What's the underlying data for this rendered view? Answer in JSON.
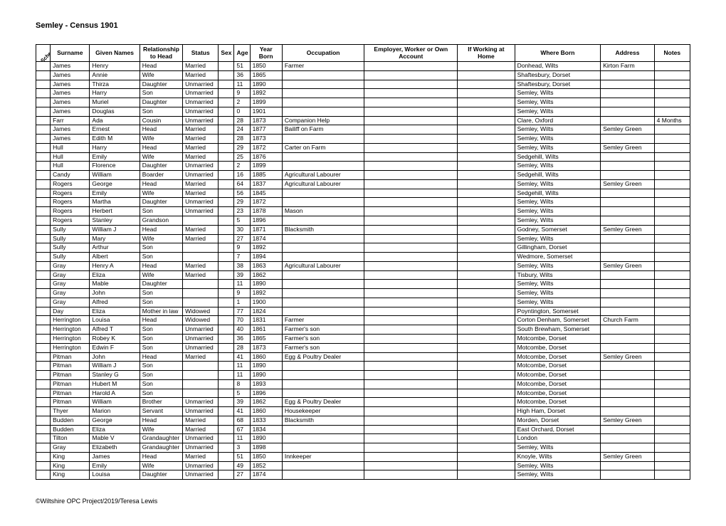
{
  "title": "Semley - Census 1901",
  "footer": "©Wiltshire OPC Project/2019/Teresa Lewis",
  "columns": [
    "Schedule",
    "Surname",
    "Given Names",
    "Relationship to Head",
    "Status",
    "Sex",
    "Age",
    "Year Born",
    "Occupation",
    "Employer, Worker or Own Account",
    "If Working at Home",
    "Where Born",
    "Address",
    "Notes"
  ],
  "rows": [
    [
      "",
      "James",
      "Henry",
      "Head",
      "Married",
      "",
      "51",
      "1850",
      "Farmer",
      "",
      "",
      "Donhead, Wilts",
      "Kirton Farm",
      ""
    ],
    [
      "",
      "James",
      "Annie",
      "Wife",
      "Married",
      "",
      "36",
      "1865",
      "",
      "",
      "",
      "Shaftesbury, Dorset",
      "",
      ""
    ],
    [
      "",
      "James",
      "Thirza",
      "Daughter",
      "Unmarried",
      "",
      "11",
      "1890",
      "",
      "",
      "",
      "Shaftesbury, Dorset",
      "",
      ""
    ],
    [
      "",
      "James",
      "Harry",
      "Son",
      "Unmarried",
      "",
      "9",
      "1892",
      "",
      "",
      "",
      "Semley, Wilts",
      "",
      ""
    ],
    [
      "",
      "James",
      "Muriel",
      "Daughter",
      "Unmarried",
      "",
      "2",
      "1899",
      "",
      "",
      "",
      "Semley, Wilts",
      "",
      ""
    ],
    [
      "",
      "James",
      "Douglas",
      "Son",
      "Unmarried",
      "",
      "0",
      "1901",
      "",
      "",
      "",
      "Semley, Wilts",
      "",
      ""
    ],
    [
      "",
      "Farr",
      "Ada",
      "Cousin",
      "Unmarried",
      "",
      "28",
      "1873",
      "Companion Help",
      "",
      "",
      "Clare, Oxford",
      "",
      "4 Months"
    ],
    [
      "",
      "James",
      "Ernest",
      "Head",
      "Married",
      "",
      "24",
      "1877",
      "Bailiff on Farm",
      "",
      "",
      "Semley, Wilts",
      "Semley Green",
      ""
    ],
    [
      "",
      "James",
      "Edith M",
      "Wife",
      "Married",
      "",
      "28",
      "1873",
      "",
      "",
      "",
      "Semley, Wilts",
      "",
      ""
    ],
    [
      "",
      "Hull",
      "Harry",
      "Head",
      "Married",
      "",
      "29",
      "1872",
      "Carter on Farm",
      "",
      "",
      "Semley, Wilts",
      "Semley Green",
      ""
    ],
    [
      "",
      "Hull",
      "Emily",
      "Wife",
      "Married",
      "",
      "25",
      "1876",
      "",
      "",
      "",
      "Sedgehill, Wilts",
      "",
      ""
    ],
    [
      "",
      "Hull",
      "Florence",
      "Daughter",
      "Unmarried",
      "",
      "2",
      "1899",
      "",
      "",
      "",
      "Semley, Wilts",
      "",
      ""
    ],
    [
      "",
      "Candy",
      "William",
      "Boarder",
      "Unmarried",
      "",
      "16",
      "1885",
      "Agricultural Labourer",
      "",
      "",
      "Sedgehill, Wilts",
      "",
      ""
    ],
    [
      "",
      "Rogers",
      "George",
      "Head",
      "Married",
      "",
      "64",
      "1837",
      "Agricultural Labourer",
      "",
      "",
      "Semley, Wilts",
      "Semley Green",
      ""
    ],
    [
      "",
      "Rogers",
      "Emily",
      "Wife",
      "Married",
      "",
      "56",
      "1845",
      "",
      "",
      "",
      "Sedgehill, Wilts",
      "",
      ""
    ],
    [
      "",
      "Rogers",
      "Martha",
      "Daughter",
      "Unmarried",
      "",
      "29",
      "1872",
      "",
      "",
      "",
      "Semley, Wilts",
      "",
      ""
    ],
    [
      "",
      "Rogers",
      "Herbert",
      "Son",
      "Unmarried",
      "",
      "23",
      "1878",
      "Mason",
      "",
      "",
      "Semley, Wilts",
      "",
      ""
    ],
    [
      "",
      "Rogers",
      "Stanley",
      "Grandson",
      "",
      "",
      "5",
      "1896",
      "",
      "",
      "",
      "Semley, Wilts",
      "",
      ""
    ],
    [
      "",
      "Sully",
      "William J",
      "Head",
      "Married",
      "",
      "30",
      "1871",
      "Blacksmith",
      "",
      "",
      "Godney, Somerset",
      "Semley Green",
      ""
    ],
    [
      "",
      "Sully",
      "Mary",
      "Wife",
      "Married",
      "",
      "27",
      "1874",
      "",
      "",
      "",
      "Semley, Wilts",
      "",
      ""
    ],
    [
      "",
      "Sully",
      "Arthur",
      "Son",
      "",
      "",
      "9",
      "1892",
      "",
      "",
      "",
      "Gillingham, Dorset",
      "",
      ""
    ],
    [
      "",
      "Sully",
      "Albert",
      "Son",
      "",
      "",
      "7",
      "1894",
      "",
      "",
      "",
      "Wedmore, Somerset",
      "",
      ""
    ],
    [
      "",
      "Gray",
      "Henry A",
      "Head",
      "Married",
      "",
      "38",
      "1863",
      "Agricultural Labourer",
      "",
      "",
      "Semley, Wilts",
      "Semley Green",
      ""
    ],
    [
      "",
      "Gray",
      "Eliza",
      "Wife",
      "Married",
      "",
      "39",
      "1862",
      "",
      "",
      "",
      "Tisbury, Wilts",
      "",
      ""
    ],
    [
      "",
      "Gray",
      "Mable",
      "Daughter",
      "",
      "",
      "11",
      "1890",
      "",
      "",
      "",
      "Semley, Wilts",
      "",
      ""
    ],
    [
      "",
      "Gray",
      "John",
      "Son",
      "",
      "",
      "9",
      "1892",
      "",
      "",
      "",
      "Semley, Wilts",
      "",
      ""
    ],
    [
      "",
      "Gray",
      "Alfred",
      "Son",
      "",
      "",
      "1",
      "1900",
      "",
      "",
      "",
      "Semley, Wilts",
      "",
      ""
    ],
    [
      "",
      "Day",
      "Eliza",
      "Mother in law",
      "Widowed",
      "",
      "77",
      "1824",
      "",
      "",
      "",
      "Poyntington, Somerset",
      "",
      ""
    ],
    [
      "",
      "Herrington",
      "Louisa",
      "Head",
      "Widowed",
      "",
      "70",
      "1831",
      "Farmer",
      "",
      "",
      "Corton Denham, Somerset",
      "Church Farm",
      ""
    ],
    [
      "",
      "Herrington",
      "Alfred T",
      "Son",
      "Unmarried",
      "",
      "40",
      "1861",
      "Farmer's son",
      "",
      "",
      "South Brewham, Somerset",
      "",
      ""
    ],
    [
      "",
      "Herrington",
      "Robey K",
      "Son",
      "Unmarried",
      "",
      "36",
      "1865",
      "Farmer's son",
      "",
      "",
      "Motcombe, Dorset",
      "",
      ""
    ],
    [
      "",
      "Herrington",
      "Edwin F",
      "Son",
      "Unmarried",
      "",
      "28",
      "1873",
      "Farmer's son",
      "",
      "",
      "Motcombe, Dorset",
      "",
      ""
    ],
    [
      "",
      "Pitman",
      "John",
      "Head",
      "Married",
      "",
      "41",
      "1860",
      "Egg & Poultry Dealer",
      "",
      "",
      "Motcombe, Dorset",
      "Semley Green",
      ""
    ],
    [
      "",
      "Pitman",
      "William J",
      "Son",
      "",
      "",
      "11",
      "1890",
      "",
      "",
      "",
      "Motcombe, Dorset",
      "",
      ""
    ],
    [
      "",
      "Pitman",
      "Stanley G",
      "Son",
      "",
      "",
      "11",
      "1890",
      "",
      "",
      "",
      "Motcombe, Dorset",
      "",
      ""
    ],
    [
      "",
      "Pitman",
      "Hubert M",
      "Son",
      "",
      "",
      "8",
      "1893",
      "",
      "",
      "",
      "Motcombe, Dorset",
      "",
      ""
    ],
    [
      "",
      "Pitman",
      "Harold A",
      "Son",
      "",
      "",
      "5",
      "1896",
      "",
      "",
      "",
      "Motcombe, Dorset",
      "",
      ""
    ],
    [
      "",
      "Pitman",
      "William",
      "Brother",
      "Unmarried",
      "",
      "39",
      "1862",
      "Egg & Poultry Dealer",
      "",
      "",
      "Motcombe, Dorset",
      "",
      ""
    ],
    [
      "",
      "Thyer",
      "Marion",
      "Servant",
      "Unmarried",
      "",
      "41",
      "1860",
      "Housekeeper",
      "",
      "",
      "High Ham, Dorset",
      "",
      ""
    ],
    [
      "",
      "Budden",
      "George",
      "Head",
      "Married",
      "",
      "68",
      "1833",
      "Blacksmith",
      "",
      "",
      "Morden, Dorset",
      "Semley Green",
      ""
    ],
    [
      "",
      "Budden",
      "Eliza",
      "Wife",
      "Married",
      "",
      "67",
      "1834",
      "",
      "",
      "",
      "East Orchard, Dorset",
      "",
      ""
    ],
    [
      "",
      "Tilton",
      "Mable V",
      "Grandaughter",
      "Unmarried",
      "",
      "11",
      "1890",
      "",
      "",
      "",
      "London",
      "",
      ""
    ],
    [
      "",
      "Gray",
      "Elizabeth",
      "Grandaughter",
      "Unmarried",
      "",
      "3",
      "1898",
      "",
      "",
      "",
      "Semley, Wilts",
      "",
      ""
    ],
    [
      "",
      "King",
      "James",
      "Head",
      "Married",
      "",
      "51",
      "1850",
      "Innkeeper",
      "",
      "",
      "Knoyle, Wilts",
      "Semley Green",
      ""
    ],
    [
      "",
      "King",
      "Emily",
      "Wife",
      "Unmarried",
      "",
      "49",
      "1852",
      "",
      "",
      "",
      "Semley, Wilts",
      "",
      ""
    ],
    [
      "",
      "King",
      "Louisa",
      "Daughter",
      "Unmarried",
      "",
      "27",
      "1874",
      "",
      "",
      "",
      "Semley, Wilts",
      "",
      ""
    ]
  ]
}
